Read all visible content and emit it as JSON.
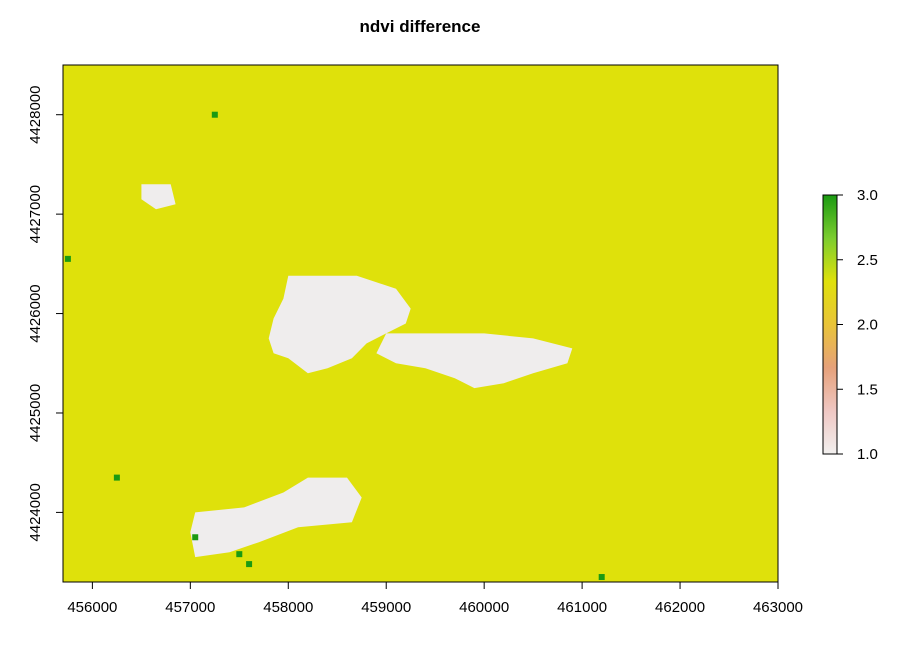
{
  "title": "ndvi difference",
  "colors": {
    "base": "#dfe10b",
    "nodata": "#efeded",
    "highval": "#1b9a12",
    "axis": "#000000",
    "legend_ramp": [
      "#1b9a12",
      "#7ccd2f",
      "#dfe10b",
      "#e9c438",
      "#e6a17a",
      "#efc7c3",
      "#f2f0ef"
    ]
  },
  "chart_data": {
    "type": "heatmap",
    "title": "ndvi difference",
    "xlabel": "",
    "ylabel": "",
    "xlim": [
      455700,
      463000
    ],
    "ylim": [
      4423300,
      4428500
    ],
    "x_ticks": [
      {
        "value": 456000,
        "label": "456000"
      },
      {
        "value": 457000,
        "label": "457000"
      },
      {
        "value": 458000,
        "label": "458000"
      },
      {
        "value": 459000,
        "label": "459000"
      },
      {
        "value": 460000,
        "label": "460000"
      },
      {
        "value": 461000,
        "label": "461000"
      },
      {
        "value": 462000,
        "label": "462000"
      },
      {
        "value": 463000,
        "label": "463000"
      }
    ],
    "y_ticks": [
      {
        "value": 4424000,
        "label": "4424000"
      },
      {
        "value": 4425000,
        "label": "4425000"
      },
      {
        "value": 4426000,
        "label": "4426000"
      },
      {
        "value": 4427000,
        "label": "4427000"
      },
      {
        "value": 4428000,
        "label": "4428000"
      }
    ],
    "raster": {
      "dominant_value": 2.0,
      "nodata_regions": [
        {
          "name": "central-cluster-west",
          "polygon": [
            [
              458000,
              4426380
            ],
            [
              458700,
              4426380
            ],
            [
              459100,
              4426250
            ],
            [
              459250,
              4426050
            ],
            [
              459200,
              4425900
            ],
            [
              459000,
              4425800
            ],
            [
              458800,
              4425700
            ],
            [
              458650,
              4425550
            ],
            [
              458400,
              4425450
            ],
            [
              458200,
              4425400
            ],
            [
              458000,
              4425550
            ],
            [
              457850,
              4425600
            ],
            [
              457800,
              4425750
            ],
            [
              457850,
              4425950
            ],
            [
              457950,
              4426150
            ]
          ]
        },
        {
          "name": "central-cluster-east",
          "polygon": [
            [
              459000,
              4425800
            ],
            [
              459500,
              4425800
            ],
            [
              460000,
              4425800
            ],
            [
              460500,
              4425750
            ],
            [
              460900,
              4425650
            ],
            [
              460850,
              4425500
            ],
            [
              460500,
              4425400
            ],
            [
              460200,
              4425300
            ],
            [
              459900,
              4425250
            ],
            [
              459700,
              4425350
            ],
            [
              459400,
              4425450
            ],
            [
              459100,
              4425500
            ],
            [
              458900,
              4425600
            ]
          ]
        },
        {
          "name": "north-west-patch",
          "polygon": [
            [
              456500,
              4427300
            ],
            [
              456800,
              4427300
            ],
            [
              456850,
              4427100
            ],
            [
              456650,
              4427050
            ],
            [
              456500,
              4427150
            ]
          ]
        },
        {
          "name": "south-patch",
          "polygon": [
            [
              457050,
              4424000
            ],
            [
              457550,
              4424050
            ],
            [
              457950,
              4424200
            ],
            [
              458200,
              4424350
            ],
            [
              458600,
              4424350
            ],
            [
              458750,
              4424150
            ],
            [
              458650,
              4423900
            ],
            [
              458100,
              4423850
            ],
            [
              457700,
              4423700
            ],
            [
              457400,
              4423600
            ],
            [
              457050,
              4423550
            ],
            [
              457000,
              4423800
            ]
          ]
        }
      ],
      "high_value_cells": [
        {
          "x": 457600,
          "y": 4423480,
          "value": 3.0
        },
        {
          "x": 457500,
          "y": 4423580,
          "value": 3.0
        },
        {
          "x": 457050,
          "y": 4423750,
          "value": 3.0
        },
        {
          "x": 457250,
          "y": 4428000,
          "value": 3.0
        },
        {
          "x": 456250,
          "y": 4424350,
          "value": 3.0
        },
        {
          "x": 455750,
          "y": 4426550,
          "value": 3.0
        },
        {
          "x": 461200,
          "y": 4423350,
          "value": 3.0
        }
      ]
    },
    "legend": {
      "placement": "right",
      "range": [
        1.0,
        3.0
      ],
      "ticks": [
        {
          "value": 3.0,
          "label": "3.0"
        },
        {
          "value": 2.5,
          "label": "2.5"
        },
        {
          "value": 2.0,
          "label": "2.0"
        },
        {
          "value": 1.5,
          "label": "1.5"
        },
        {
          "value": 1.0,
          "label": "1.0"
        }
      ]
    }
  }
}
